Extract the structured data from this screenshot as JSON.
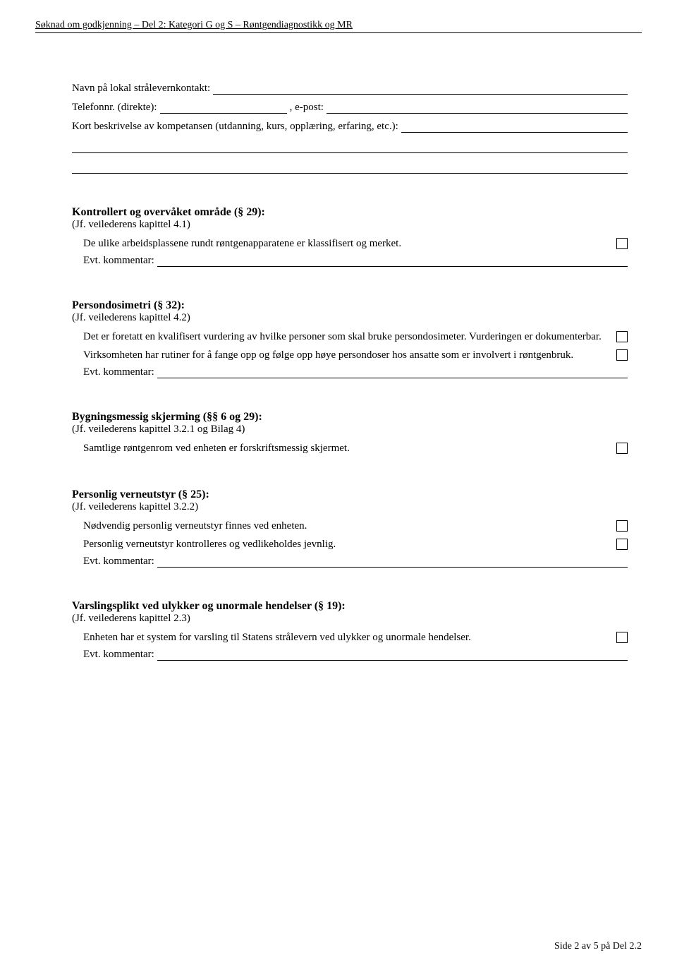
{
  "header": "Søknad om godkjenning – Del 2: Kategori G og S – Røntgendiagnostikk og MR",
  "intro": {
    "navn_label": "Navn på lokal strålevernkontakt:",
    "tel_label": "Telefonnr. (direkte):",
    "epost_label": ", e-post:",
    "beskrivelse_label": "Kort beskrivelse av kompetansen (utdanning, kurs, opplæring, erfaring, etc.):"
  },
  "kommentar_label": "Evt. kommentar:",
  "sections": {
    "s29": {
      "title": "Kontrollert og overvåket område (§ 29):",
      "sub": "(Jf. veilederens kapittel 4.1)",
      "item1": "De ulike arbeidsplassene rundt røntgenapparatene er klassifisert og merket."
    },
    "s32": {
      "title": "Persondosimetri (§ 32):",
      "sub": "(Jf. veilederens kapittel 4.2)",
      "item1": "Det er foretatt en kvalifisert vurdering av hvilke personer som skal bruke persondosimeter. Vurderingen er dokumenterbar.",
      "item2": "Virksomheten har rutiner for å fange opp og følge opp høye persondoser hos ansatte som er involvert i røntgenbruk."
    },
    "s6_29": {
      "title": "Bygningsmessig skjerming (§§ 6 og 29):",
      "sub": "(Jf. veilederens kapittel 3.2.1 og Bilag 4)",
      "item1": "Samtlige røntgenrom ved enheten er forskriftsmessig skjermet."
    },
    "s25": {
      "title": "Personlig verneutstyr (§ 25):",
      "sub": "(Jf. veilederens kapittel 3.2.2)",
      "item1": "Nødvendig personlig verneutstyr finnes ved enheten.",
      "item2": "Personlig verneutstyr kontrolleres og vedlikeholdes jevnlig."
    },
    "s19": {
      "title": "Varslingsplikt ved ulykker og unormale hendelser (§ 19):",
      "sub": "(Jf. veilederens kapittel 2.3)",
      "item1": "Enheten har et system for varsling til Statens strålevern ved ulykker og unormale hendelser."
    }
  },
  "footer": "Side 2 av 5 på Del 2.2"
}
